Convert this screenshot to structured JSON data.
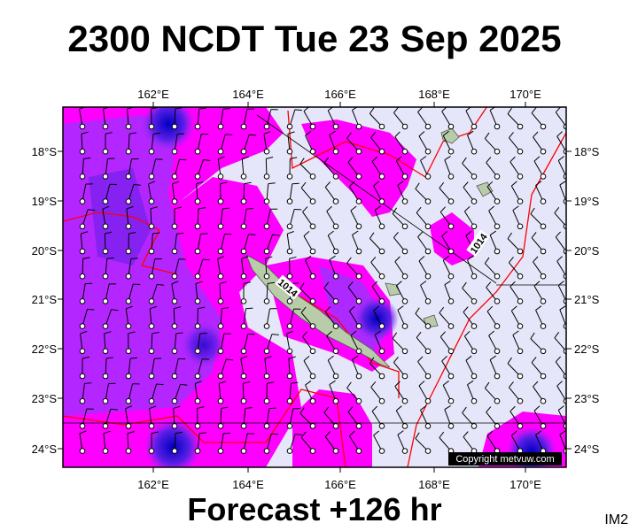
{
  "header": {
    "title": "2300 NCDT Tue 23 Sep 2025"
  },
  "map": {
    "lon_labels": [
      "162°E",
      "164°E",
      "166°E",
      "168°E",
      "170°E"
    ],
    "lat_labels": [
      "18°S",
      "19°S",
      "20°S",
      "21°S",
      "22°S",
      "23°S",
      "24°S"
    ],
    "isobar_labels": [
      "1014",
      "1014"
    ],
    "copyright": "Copyright metvuw.com"
  },
  "footer": {
    "forecast": "Forecast +126 hr",
    "tag": "IM2"
  }
}
